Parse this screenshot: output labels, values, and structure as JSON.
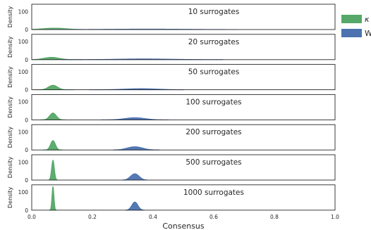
{
  "chart_data": {
    "type": "area",
    "xlabel": "Consensus",
    "ylabel": "Density",
    "xlim": [
      0.0,
      1.0
    ],
    "ylim": [
      0,
      140
    ],
    "x_ticks": [
      "0.0",
      "0.2",
      "0.4",
      "0.6",
      "0.8",
      "1.0"
    ],
    "y_ticks": [
      "0",
      "100"
    ],
    "grid": false,
    "legend_position": "right",
    "legend": [
      {
        "label": "κ",
        "color": "#55a868"
      },
      {
        "label": "W",
        "color": "#4c72b0"
      }
    ],
    "panels": [
      {
        "title": "10 surrogates",
        "series": [
          {
            "color": "#55a868",
            "mean": 0.075,
            "sd": 0.038,
            "support": [
              0.0,
              0.2
            ],
            "peak": 8
          },
          {
            "color": "#4c72b0",
            "mean": 0.38,
            "sd": 0.12,
            "support": [
              0.05,
              0.68
            ],
            "peak": 2.5
          }
        ]
      },
      {
        "title": "20 surrogates",
        "series": [
          {
            "color": "#55a868",
            "mean": 0.065,
            "sd": 0.025,
            "support": [
              0.0,
              0.17
            ],
            "peak": 13
          },
          {
            "color": "#4c72b0",
            "mean": 0.37,
            "sd": 0.09,
            "support": [
              0.1,
              0.63
            ],
            "peak": 4
          }
        ]
      },
      {
        "title": "50 surrogates",
        "series": [
          {
            "color": "#55a868",
            "mean": 0.07,
            "sd": 0.015,
            "support": [
              0.01,
              0.14
            ],
            "peak": 25
          },
          {
            "color": "#4c72b0",
            "mean": 0.36,
            "sd": 0.055,
            "support": [
              0.19,
              0.5
            ],
            "peak": 6
          }
        ]
      },
      {
        "title": "100 surrogates",
        "series": [
          {
            "color": "#55a868",
            "mean": 0.07,
            "sd": 0.011,
            "support": [
              0.03,
              0.11
            ],
            "peak": 38
          },
          {
            "color": "#4c72b0",
            "mean": 0.34,
            "sd": 0.033,
            "support": [
              0.23,
              0.45
            ],
            "peak": 12
          }
        ]
      },
      {
        "title": "200 surrogates",
        "series": [
          {
            "color": "#55a868",
            "mean": 0.07,
            "sd": 0.008,
            "support": [
              0.04,
              0.1
            ],
            "peak": 52
          },
          {
            "color": "#4c72b0",
            "mean": 0.34,
            "sd": 0.025,
            "support": [
              0.27,
              0.42
            ],
            "peak": 18
          }
        ]
      },
      {
        "title": "500 surrogates",
        "series": [
          {
            "color": "#55a868",
            "mean": 0.07,
            "sd": 0.0045,
            "support": [
              0.055,
              0.085
            ],
            "peak": 110
          },
          {
            "color": "#4c72b0",
            "mean": 0.34,
            "sd": 0.014,
            "support": [
              0.3,
              0.38
            ],
            "peak": 35
          }
        ]
      },
      {
        "title": "1000 surrogates",
        "series": [
          {
            "color": "#55a868",
            "mean": 0.07,
            "sd": 0.0033,
            "support": [
              0.059,
              0.081
            ],
            "peak": 130
          },
          {
            "color": "#4c72b0",
            "mean": 0.34,
            "sd": 0.01,
            "support": [
              0.31,
              0.37
            ],
            "peak": 45
          }
        ]
      }
    ]
  }
}
